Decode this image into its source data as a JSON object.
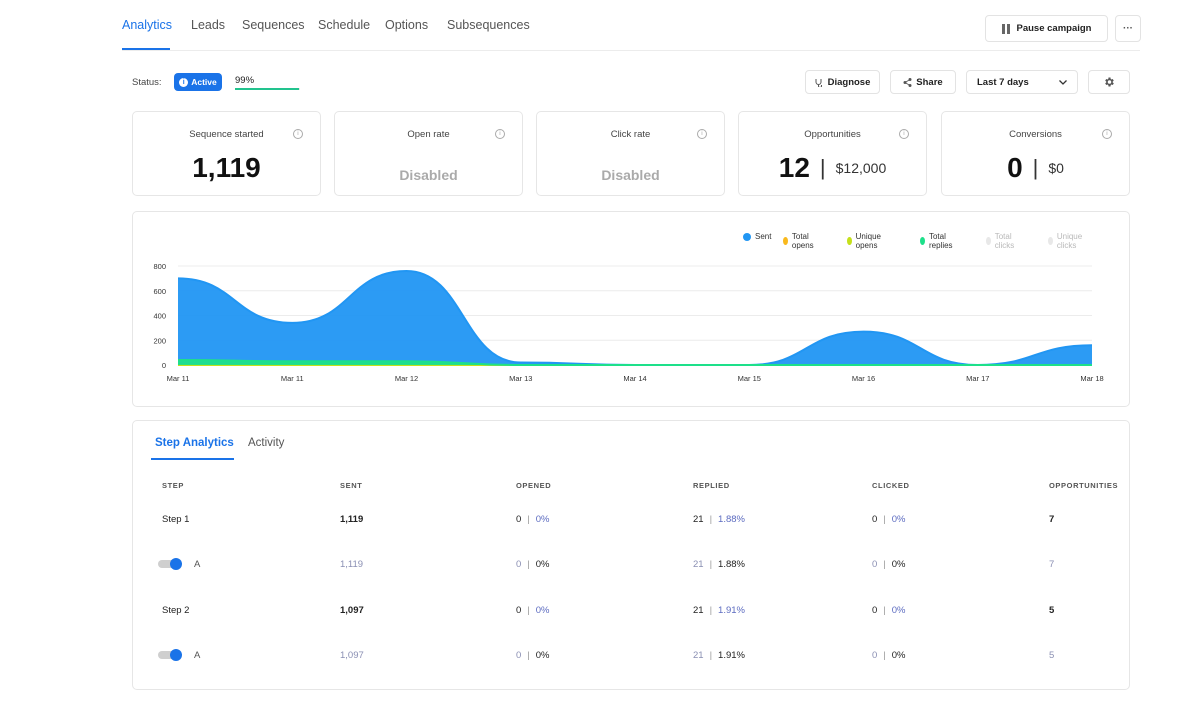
{
  "nav": {
    "tabs": [
      {
        "label": "Analytics",
        "active": true
      },
      {
        "label": "Leads"
      },
      {
        "label": "Sequences"
      },
      {
        "label": "Schedule"
      },
      {
        "label": "Options"
      },
      {
        "label": "Subsequences"
      }
    ],
    "pause_label": "Pause campaign",
    "more_label": "···"
  },
  "status": {
    "label": "Status:",
    "badge": "Active",
    "progress_text": "99%",
    "progress_value": 0.99
  },
  "toolbar": {
    "diagnose_label": "Diagnose",
    "share_label": "Share",
    "date_range": "Last 7 days"
  },
  "cards": [
    {
      "title": "Sequence started",
      "value": "1,119"
    },
    {
      "title": "Open rate",
      "value": "Disabled"
    },
    {
      "title": "Click rate",
      "value": "Disabled"
    },
    {
      "title": "Opportunities",
      "value": "12",
      "amount": "$12,000"
    },
    {
      "title": "Conversions",
      "value": "0",
      "amount": "$0"
    }
  ],
  "chart_data": {
    "type": "area",
    "x": [
      "Mar 11",
      "Mar 11",
      "Mar 12",
      "Mar 13",
      "Mar 14",
      "Mar 15",
      "Mar 16",
      "Mar 17",
      "Mar 18"
    ],
    "ylim": [
      0,
      800
    ],
    "yticks": [
      0,
      200,
      400,
      600,
      800
    ],
    "legend_position": "top-right",
    "grid": true,
    "series": [
      {
        "name": "Sent",
        "color": "#2196f3",
        "values": [
          700,
          340,
          760,
          20,
          0,
          0,
          270,
          0,
          160
        ]
      },
      {
        "name": "Total opens",
        "color": "#f9b91d",
        "values": [
          0,
          0,
          0,
          0,
          0,
          0,
          0,
          0,
          0
        ]
      },
      {
        "name": "Unique opens",
        "color": "#c5e01b",
        "values": [
          0,
          0,
          0,
          0,
          0,
          0,
          0,
          0,
          0
        ]
      },
      {
        "name": "Total replies",
        "color": "#1de08a",
        "values": [
          40,
          30,
          30,
          0,
          0,
          0,
          0,
          0,
          0
        ]
      },
      {
        "name": "Total clicks",
        "color": "#e8e8e8",
        "values": [
          0,
          0,
          0,
          0,
          0,
          0,
          0,
          0,
          0
        ]
      },
      {
        "name": "Unique clicks",
        "color": "#e8e8e8",
        "values": [
          0,
          0,
          0,
          0,
          0,
          0,
          0,
          0,
          0
        ]
      }
    ]
  },
  "steps": {
    "tabs": [
      "Step Analytics",
      "Activity"
    ],
    "columns": [
      "STEP",
      "SENT",
      "OPENED",
      "REPLIED",
      "CLICKED",
      "OPPORTUNITIES"
    ],
    "rows": [
      {
        "step": "Step 1",
        "sent": "1,119",
        "opened": "0",
        "opened_pct": "0%",
        "replied": "21",
        "replied_pct": "1.88%",
        "clicked": "0",
        "clicked_pct": "0%",
        "opps": "7"
      },
      {
        "step": "A",
        "sent": "1,119",
        "opened": "0",
        "opened_pct": "0%",
        "replied": "21",
        "replied_pct": "1.88%",
        "clicked": "0",
        "clicked_pct": "0%",
        "opps": "7",
        "variant": true
      },
      {
        "step": "Step 2",
        "sent": "1,097",
        "opened": "0",
        "opened_pct": "0%",
        "replied": "21",
        "replied_pct": "1.91%",
        "clicked": "0",
        "clicked_pct": "0%",
        "opps": "5"
      },
      {
        "step": "A",
        "sent": "1,097",
        "opened": "0",
        "opened_pct": "0%",
        "replied": "21",
        "replied_pct": "1.91%",
        "clicked": "0",
        "clicked_pct": "0%",
        "opps": "5",
        "variant": true
      }
    ]
  }
}
